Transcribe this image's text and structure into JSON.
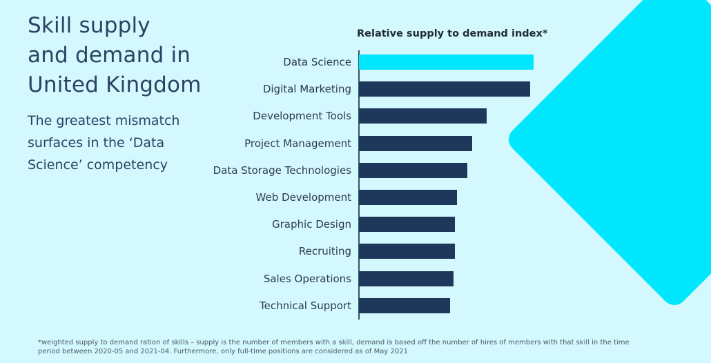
{
  "header": {
    "title_lines": [
      "Skill supply",
      "and demand in",
      "United Kingdom"
    ],
    "subtitle_lines": [
      "The greatest mismatch",
      "surfaces in the ‘Data",
      "Science’ competency"
    ]
  },
  "colors": {
    "background": "#d3f8fe",
    "accent": "#00e6fd",
    "bar": "#1e385c",
    "highlight_bar": "#00e6fd",
    "text": "#2c4263"
  },
  "chart_data": {
    "type": "bar",
    "orientation": "horizontal",
    "title": "Relative supply to demand index*",
    "xlabel": "",
    "ylabel": "",
    "categories": [
      "Data Science",
      "Digital Marketing",
      "Development Tools",
      "Project Management",
      "Data Storage Technologies",
      "Web Development",
      "Graphic Design",
      "Recruiting",
      "Sales Operations",
      "Technical Support"
    ],
    "values": [
      1.0,
      0.98,
      0.73,
      0.65,
      0.62,
      0.56,
      0.55,
      0.55,
      0.54,
      0.52
    ],
    "xlim": [
      0,
      1.0
    ],
    "highlight": "Data Science",
    "grid": false,
    "legend": "none"
  },
  "footnote": {
    "line1": "*weighted supply to demand ration of skills – supply is the number of members with a skill, demand is based off the number of hires of members with that skill in the time",
    "line2": "period between 2020-05 and 2021-04. Furthermore, only full-time positions are considered as of May 2021"
  }
}
